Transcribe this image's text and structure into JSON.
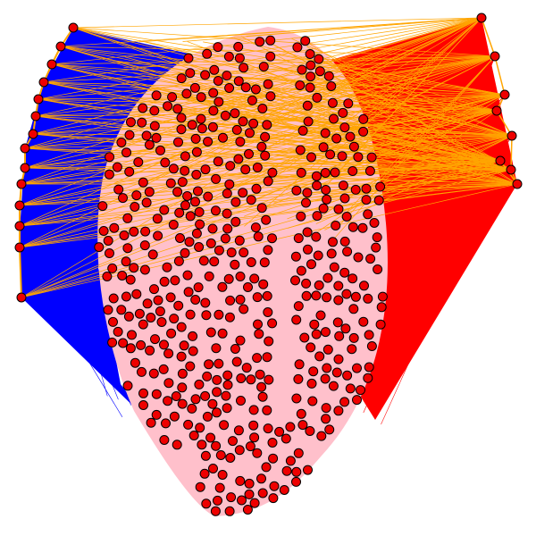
{
  "colors": {
    "background": "#ffffff",
    "region_fill": "#ffc0cb",
    "node_fill": "#ee0000",
    "node_stroke": "#000000",
    "left_cluster_edges": "#0000ff",
    "right_cluster_edges": "#ff0000",
    "cross_edges": "#ffa500"
  },
  "graph": {
    "left_hub_count": 14,
    "right_hub_count": 8,
    "interior_node_count": 480
  }
}
